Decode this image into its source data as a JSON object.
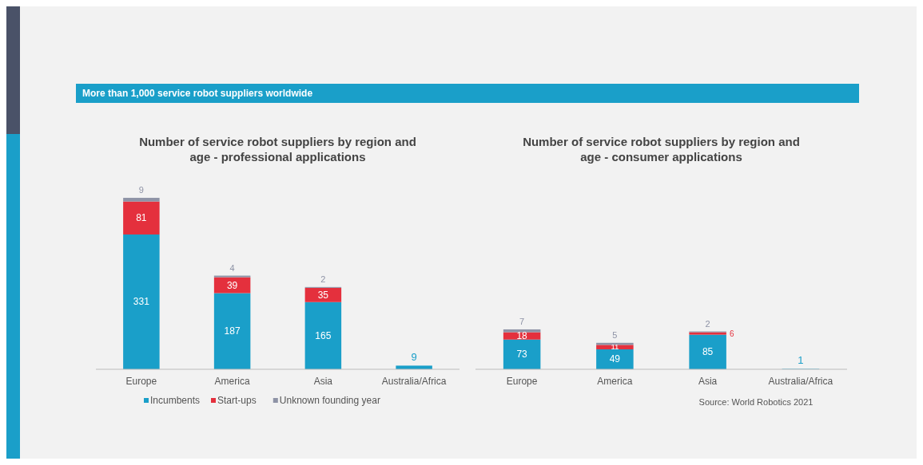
{
  "chart_data": [
    {
      "type": "bar",
      "stacked": true,
      "title": "Number of service robot suppliers by region and age - professional applications",
      "categories": [
        "Europe",
        "America",
        "Asia",
        "Australia/Africa"
      ],
      "series": [
        {
          "name": "Incumbents",
          "color": "#1a9fc9",
          "values": [
            331,
            187,
            165,
            9
          ]
        },
        {
          "name": "Start-ups",
          "color": "#e4303d",
          "values": [
            81,
            39,
            35,
            null
          ]
        },
        {
          "name": "Unknown founding year",
          "color": "#8e93a6",
          "values": [
            9,
            4,
            2,
            null
          ]
        }
      ],
      "tick_labels": "x",
      "data_labels": true,
      "legend": "bottom",
      "annotations": [
        "More than 1,000 service robot suppliers worldwide"
      ]
    },
    {
      "type": "bar",
      "stacked": true,
      "title": "Number of service robot suppliers by region and age - consumer applications",
      "categories": [
        "Europe",
        "America",
        "Asia",
        "Australia/Africa"
      ],
      "series": [
        {
          "color": "#1a9fc9",
          "values": [
            73,
            49,
            85,
            1
          ]
        },
        {
          "color": "#e4303d",
          "values": [
            18,
            11,
            6,
            null
          ]
        },
        {
          "color": "#8e93a6",
          "values": [
            7,
            5,
            2,
            null
          ]
        }
      ],
      "tick_labels": "x",
      "data_labels": true,
      "annotations": [
        "Source: World Robotics 2021"
      ]
    }
  ]
}
